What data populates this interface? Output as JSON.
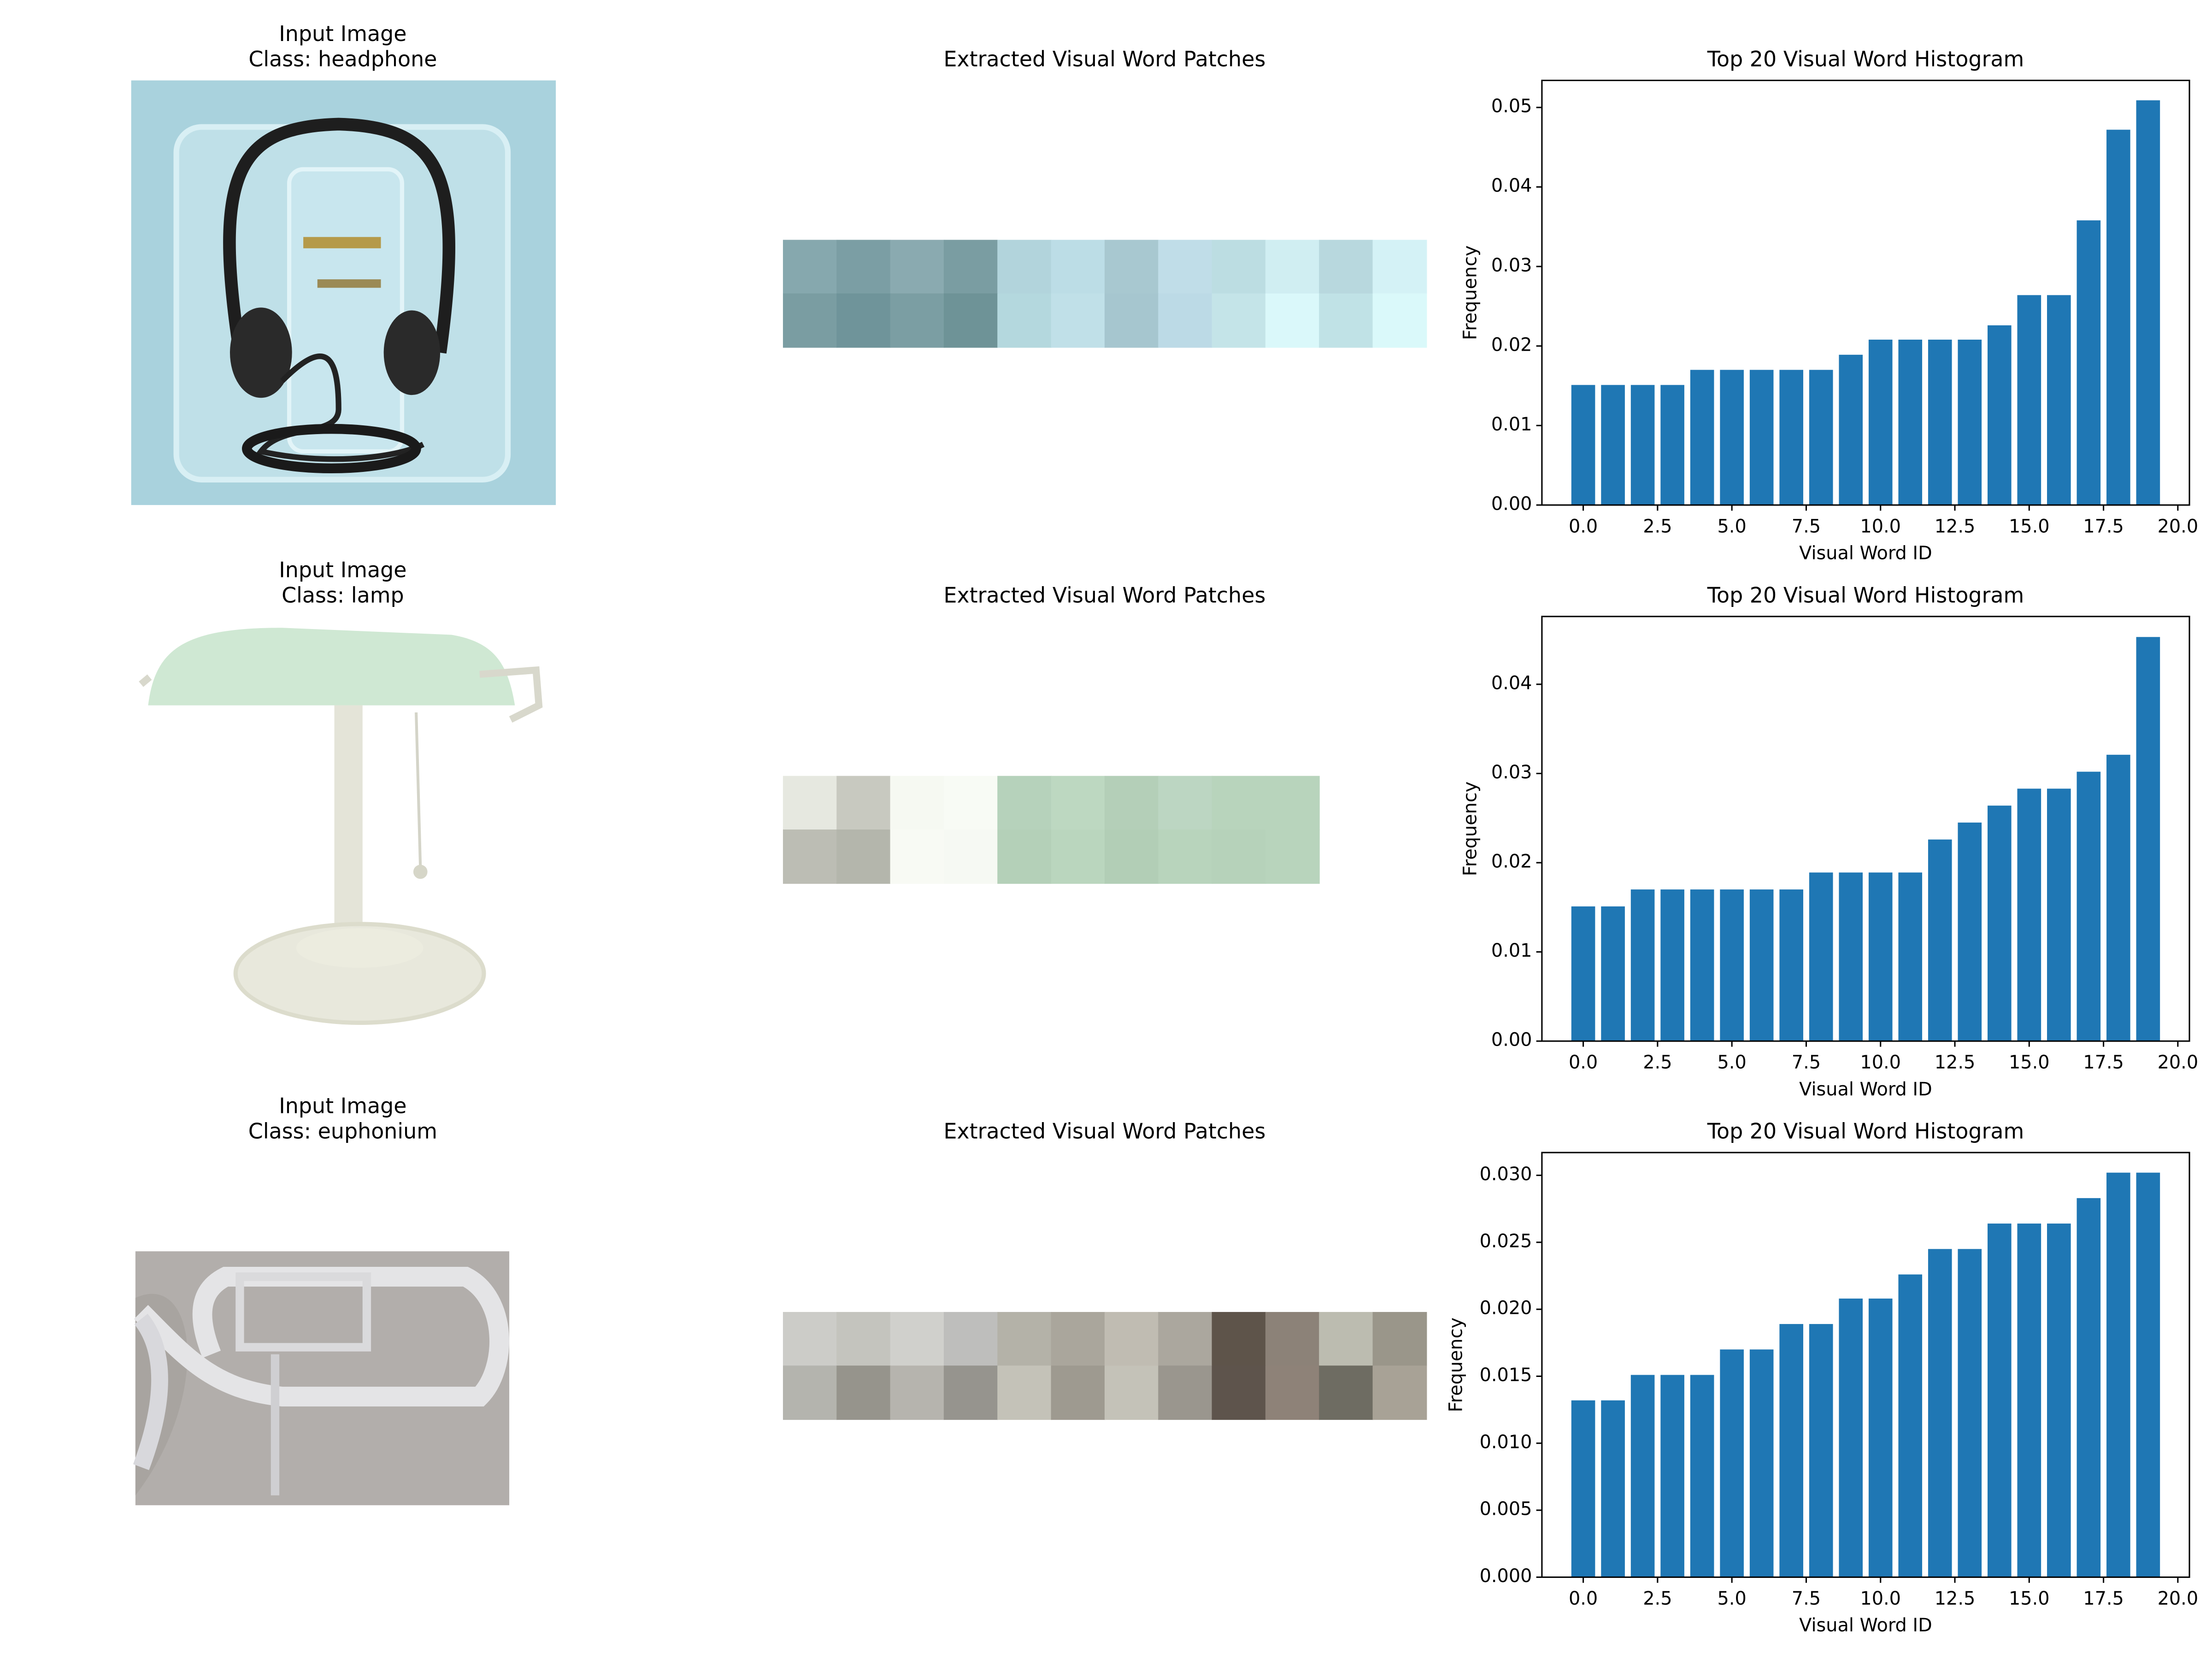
{
  "panels": [
    {
      "image_title": "Input Image",
      "class_label": "Class: headphone",
      "patches_title": "Extracted Visual Word Patches"
    },
    {
      "image_title": "Input Image",
      "class_label": "Class: lamp",
      "patches_title": "Extracted Visual Word Patches"
    },
    {
      "image_title": "Input Image",
      "class_label": "Class: euphonium",
      "patches_title": "Extracted Visual Word Patches"
    }
  ],
  "chart_data": [
    {
      "type": "bar",
      "title": "Top 20 Visual Word Histogram",
      "xlabel": "Visual Word ID",
      "ylabel": "Frequency",
      "color": "#1f77b4",
      "x": [
        0,
        1,
        2,
        3,
        4,
        5,
        6,
        7,
        8,
        9,
        10,
        11,
        12,
        13,
        14,
        15,
        16,
        17,
        18,
        19
      ],
      "values": [
        0.0151,
        0.0151,
        0.0151,
        0.0151,
        0.017,
        0.017,
        0.017,
        0.017,
        0.017,
        0.0189,
        0.0208,
        0.0208,
        0.0208,
        0.0208,
        0.0226,
        0.0264,
        0.0264,
        0.0358,
        0.0472,
        0.0509
      ],
      "xlim": [
        -1.39,
        20.39
      ],
      "ylim": [
        0,
        0.0534
      ],
      "xticks": [
        {
          "value": 0,
          "label": "0.0"
        },
        2.5,
        {
          "value": 5,
          "label": "5.0"
        },
        7.5,
        {
          "value": 10,
          "label": "10.0"
        },
        12.5,
        {
          "value": 15,
          "label": "15.0"
        },
        17.5,
        {
          "value": 20,
          "label": "20.0"
        }
      ],
      "yticks": [
        {
          "value": 0,
          "label": "0.00"
        },
        0.01,
        0.02,
        0.03,
        0.04,
        0.05
      ]
    },
    {
      "type": "bar",
      "title": "Top 20 Visual Word Histogram",
      "xlabel": "Visual Word ID",
      "ylabel": "Frequency",
      "color": "#1f77b4",
      "x": [
        0,
        1,
        2,
        3,
        4,
        5,
        6,
        7,
        8,
        9,
        10,
        11,
        12,
        13,
        14,
        15,
        16,
        17,
        18,
        19
      ],
      "values": [
        0.0151,
        0.0151,
        0.017,
        0.017,
        0.017,
        0.017,
        0.017,
        0.017,
        0.0189,
        0.0189,
        0.0189,
        0.0189,
        0.0226,
        0.0245,
        0.0264,
        0.0283,
        0.0283,
        0.0302,
        0.0321,
        0.0453
      ],
      "xlim": [
        -1.39,
        20.39
      ],
      "ylim": [
        0,
        0.0476
      ],
      "xticks": [
        {
          "value": 0,
          "label": "0.0"
        },
        2.5,
        {
          "value": 5,
          "label": "5.0"
        },
        7.5,
        {
          "value": 10,
          "label": "10.0"
        },
        12.5,
        {
          "value": 15,
          "label": "15.0"
        },
        17.5,
        {
          "value": 20,
          "label": "20.0"
        }
      ],
      "yticks": [
        {
          "value": 0,
          "label": "0.00"
        },
        0.01,
        0.02,
        0.03,
        0.04
      ]
    },
    {
      "type": "bar",
      "title": "Top 20 Visual Word Histogram",
      "xlabel": "Visual Word ID",
      "ylabel": "Frequency",
      "color": "#1f77b4",
      "x": [
        0,
        1,
        2,
        3,
        4,
        5,
        6,
        7,
        8,
        9,
        10,
        11,
        12,
        13,
        14,
        15,
        16,
        17,
        18,
        19
      ],
      "values": [
        0.0132,
        0.0132,
        0.0151,
        0.0151,
        0.0151,
        0.017,
        0.017,
        0.0189,
        0.0189,
        0.0208,
        0.0208,
        0.0226,
        0.0245,
        0.0245,
        0.0264,
        0.0264,
        0.0264,
        0.0283,
        0.0302,
        0.0302
      ],
      "xlim": [
        -1.39,
        20.39
      ],
      "ylim": [
        0,
        0.0317
      ],
      "xticks": [
        {
          "value": 0,
          "label": "0.0"
        },
        2.5,
        {
          "value": 5,
          "label": "5.0"
        },
        7.5,
        {
          "value": 10,
          "label": "10.0"
        },
        12.5,
        {
          "value": 15,
          "label": "15.0"
        },
        17.5,
        {
          "value": 20,
          "label": "20.0"
        }
      ],
      "yticks": [
        {
          "value": 0,
          "label": "0.000"
        },
        0.005,
        {
          "value": 0.01,
          "label": "0.010"
        },
        0.015,
        {
          "value": 0.02,
          "label": "0.020"
        },
        0.025,
        {
          "value": 0.03,
          "label": "0.030"
        }
      ]
    }
  ]
}
